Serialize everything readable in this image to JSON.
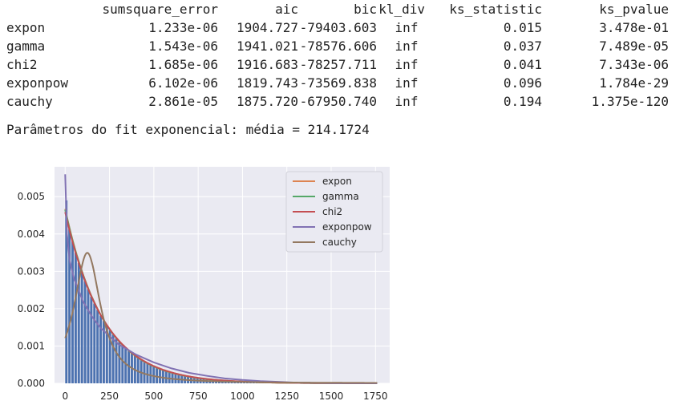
{
  "table": {
    "headers": [
      "",
      "sumsquare_error",
      "aic",
      "bic",
      "kl_div",
      "ks_statistic",
      "ks_pvalue"
    ],
    "rows": [
      [
        "expon",
        "1.233e-06",
        "1904.727",
        "-79403.603",
        "inf",
        "0.015",
        "3.478e-01"
      ],
      [
        "gamma",
        "1.543e-06",
        "1941.021",
        "-78576.606",
        "inf",
        "0.037",
        "7.489e-05"
      ],
      [
        "chi2",
        "1.685e-06",
        "1916.683",
        "-78257.711",
        "inf",
        "0.041",
        "7.343e-06"
      ],
      [
        "exponpow",
        "6.102e-06",
        "1819.743",
        "-73569.838",
        "inf",
        "0.096",
        "1.784e-29"
      ],
      [
        "cauchy",
        "2.861e-05",
        "1875.720",
        "-67950.740",
        "inf",
        "0.194",
        "1.375e-120"
      ]
    ]
  },
  "param_line": "Parâmetros do fit exponencial: média = 214.1724",
  "chart_data": {
    "type": "line",
    "xlim": [
      -60,
      1830
    ],
    "ylim": [
      0,
      0.0058
    ],
    "xticks": [
      "0",
      "250",
      "500",
      "750",
      "1000",
      "1250",
      "1500",
      "1750"
    ],
    "xtick_values": [
      0,
      250,
      500,
      750,
      1000,
      1250,
      1500,
      1750
    ],
    "yticks": [
      "0.000",
      "0.001",
      "0.002",
      "0.003",
      "0.004",
      "0.005"
    ],
    "ytick_values": [
      0,
      0.001,
      0.002,
      0.003,
      0.004,
      0.005
    ],
    "grid": true,
    "legend_placement": "top-right",
    "histogram": {
      "color": "#4c72b0",
      "bin_width": 17.6,
      "bin_start": 0,
      "x_end": 1760,
      "mean": 214.1724,
      "peak_density": 0.0049
    },
    "series": [
      {
        "name": "expon",
        "color": "#dd8452",
        "mean": 214.1724
      },
      {
        "name": "gamma",
        "color": "#55a868",
        "mean": 215
      },
      {
        "name": "chi2",
        "color": "#c44e52",
        "mean": 218
      },
      {
        "name": "exponpow",
        "color": "#8172b3",
        "x": [
          0,
          10,
          25,
          50,
          100,
          150,
          200,
          300,
          400,
          500,
          600,
          700,
          800,
          900,
          1000,
          1100,
          1200,
          1300,
          1500,
          1760
        ],
        "values": [
          0.0056,
          0.004,
          0.0033,
          0.0028,
          0.0022,
          0.0018,
          0.00148,
          0.00105,
          0.00077,
          0.00056,
          0.0004,
          0.00028,
          0.0002,
          0.00013,
          9e-05,
          6e-05,
          4e-05,
          2e-05,
          5e-06,
          0
        ]
      },
      {
        "name": "cauchy",
        "color": "#937860",
        "loc": 125,
        "scale": 91
      }
    ]
  }
}
